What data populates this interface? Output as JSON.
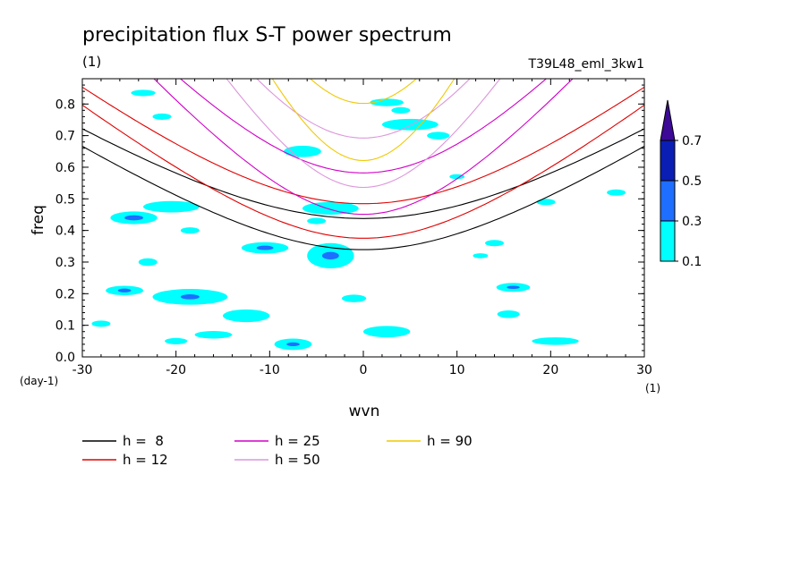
{
  "chart_data": {
    "type": "contour",
    "title": "precipitation flux S-T power spectrum",
    "units_label": "(1)",
    "run_label": "T39L48_eml_3kw1",
    "xlabel": "wvn",
    "ylabel": "freq",
    "x_units": "(1)",
    "y_units": "(day-1)",
    "xlim": [
      -30,
      30
    ],
    "ylim": [
      0,
      0.88
    ],
    "x_ticks": [
      -30,
      -20,
      -10,
      0,
      10,
      20,
      30
    ],
    "y_ticks": [
      0.0,
      0.1,
      0.2,
      0.3,
      0.4,
      0.5,
      0.6,
      0.7,
      0.8
    ],
    "x_tick_labels": [
      "-30",
      "-20",
      "-10",
      "0",
      "10",
      "20",
      "30"
    ],
    "y_tick_labels": [
      "0.0",
      "0.1",
      "0.2",
      "0.3",
      "0.4",
      "0.5",
      "0.6",
      "0.7",
      "0.8"
    ],
    "colorbar": {
      "levels": [
        "0.1",
        "0.3",
        "0.5",
        "0.7"
      ],
      "colors": [
        "#00ffff",
        "#1e6eff",
        "#0a1eb4",
        "#3c0a96"
      ]
    },
    "dispersion_curves": [
      {
        "label": "h =  8",
        "h": 8,
        "color": "#000000"
      },
      {
        "label": "h = 12",
        "h": 12,
        "color": "#e00000"
      },
      {
        "label": "h = 25",
        "h": 25,
        "color": "#d200c8"
      },
      {
        "label": "h = 50",
        "h": 50,
        "color": "#dc96dc"
      },
      {
        "label": "h = 90",
        "h": 90,
        "color": "#f0c800"
      }
    ],
    "contour_blobs": [
      {
        "x": 2.5,
        "y": 0.805,
        "rx": 1.8,
        "ry": 0.012,
        "level": 1
      },
      {
        "x": -23.5,
        "y": 0.835,
        "rx": 1.3,
        "ry": 0.01,
        "level": 1
      },
      {
        "x": 4.0,
        "y": 0.78,
        "rx": 1.0,
        "ry": 0.01,
        "level": 1
      },
      {
        "x": 5.0,
        "y": 0.735,
        "rx": 3.0,
        "ry": 0.018,
        "level": 1
      },
      {
        "x": -21.5,
        "y": 0.76,
        "rx": 1.0,
        "ry": 0.01,
        "level": 1
      },
      {
        "x": -6.5,
        "y": 0.65,
        "rx": 2.0,
        "ry": 0.018,
        "level": 1
      },
      {
        "x": -20.5,
        "y": 0.475,
        "rx": 3.0,
        "ry": 0.018,
        "level": 1
      },
      {
        "x": -24.5,
        "y": 0.44,
        "rx": 2.5,
        "ry": 0.02,
        "level": 1
      },
      {
        "x": -24.5,
        "y": 0.44,
        "rx": 1.0,
        "ry": 0.008,
        "level": 2
      },
      {
        "x": -3.5,
        "y": 0.47,
        "rx": 3.0,
        "ry": 0.02,
        "level": 1
      },
      {
        "x": -18.5,
        "y": 0.4,
        "rx": 1.0,
        "ry": 0.01,
        "level": 1
      },
      {
        "x": -10.5,
        "y": 0.345,
        "rx": 2.5,
        "ry": 0.018,
        "level": 1
      },
      {
        "x": -10.5,
        "y": 0.345,
        "rx": 0.9,
        "ry": 0.007,
        "level": 2
      },
      {
        "x": -3.5,
        "y": 0.32,
        "rx": 2.5,
        "ry": 0.04,
        "level": 1
      },
      {
        "x": -3.5,
        "y": 0.32,
        "rx": 0.9,
        "ry": 0.012,
        "level": 2
      },
      {
        "x": -18.5,
        "y": 0.19,
        "rx": 4.0,
        "ry": 0.025,
        "level": 1
      },
      {
        "x": -18.5,
        "y": 0.19,
        "rx": 1.0,
        "ry": 0.008,
        "level": 2
      },
      {
        "x": -25.5,
        "y": 0.21,
        "rx": 2.0,
        "ry": 0.015,
        "level": 1
      },
      {
        "x": -25.5,
        "y": 0.21,
        "rx": 0.7,
        "ry": 0.006,
        "level": 2
      },
      {
        "x": -12.5,
        "y": 0.13,
        "rx": 2.5,
        "ry": 0.02,
        "level": 1
      },
      {
        "x": -7.5,
        "y": 0.04,
        "rx": 2.0,
        "ry": 0.018,
        "level": 1
      },
      {
        "x": -7.5,
        "y": 0.04,
        "rx": 0.7,
        "ry": 0.006,
        "level": 2
      },
      {
        "x": 16.0,
        "y": 0.22,
        "rx": 1.8,
        "ry": 0.014,
        "level": 1
      },
      {
        "x": 16.0,
        "y": 0.22,
        "rx": 0.7,
        "ry": 0.005,
        "level": 2
      },
      {
        "x": 15.5,
        "y": 0.135,
        "rx": 1.2,
        "ry": 0.012,
        "level": 1
      },
      {
        "x": 20.5,
        "y": 0.05,
        "rx": 2.5,
        "ry": 0.012,
        "level": 1
      },
      {
        "x": 14.0,
        "y": 0.36,
        "rx": 1.0,
        "ry": 0.01,
        "level": 1
      },
      {
        "x": 2.5,
        "y": 0.08,
        "rx": 2.5,
        "ry": 0.018,
        "level": 1
      },
      {
        "x": 19.5,
        "y": 0.49,
        "rx": 1.0,
        "ry": 0.01,
        "level": 1
      },
      {
        "x": 27.0,
        "y": 0.52,
        "rx": 1.0,
        "ry": 0.01,
        "level": 1
      },
      {
        "x": -23.0,
        "y": 0.3,
        "rx": 1.0,
        "ry": 0.012,
        "level": 1
      },
      {
        "x": -1.0,
        "y": 0.185,
        "rx": 1.3,
        "ry": 0.012,
        "level": 1
      },
      {
        "x": -16.0,
        "y": 0.07,
        "rx": 2.0,
        "ry": 0.012,
        "level": 1
      },
      {
        "x": -28.0,
        "y": 0.105,
        "rx": 1.0,
        "ry": 0.01,
        "level": 1
      },
      {
        "x": 12.5,
        "y": 0.32,
        "rx": 0.8,
        "ry": 0.008,
        "level": 1
      },
      {
        "x": 8.0,
        "y": 0.7,
        "rx": 1.2,
        "ry": 0.012,
        "level": 1
      },
      {
        "x": 10.0,
        "y": 0.57,
        "rx": 0.8,
        "ry": 0.008,
        "level": 1
      },
      {
        "x": -20.0,
        "y": 0.05,
        "rx": 1.2,
        "ry": 0.01,
        "level": 1
      },
      {
        "x": -5.0,
        "y": 0.43,
        "rx": 1.0,
        "ry": 0.01,
        "level": 1
      }
    ]
  }
}
